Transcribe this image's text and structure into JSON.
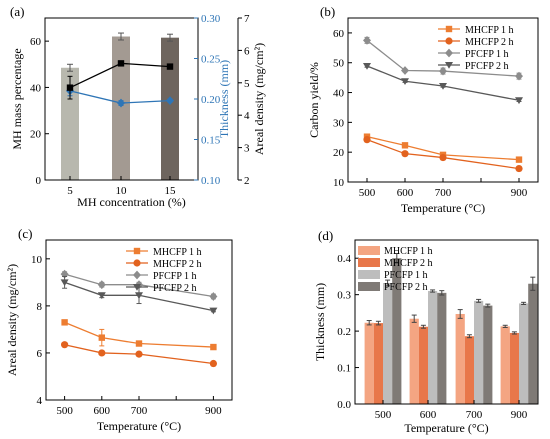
{
  "chart_data": [
    {
      "id": "a",
      "panel_label": "(a)",
      "type": "bar",
      "categories": [
        "5",
        "10",
        "15"
      ],
      "xlabel": "MH concentration (%)",
      "ylabel": "MH mass percentage",
      "ylim": [
        0,
        70
      ],
      "yticks": [
        0,
        20,
        40,
        60
      ],
      "y2label": "Thickness (mm)",
      "y2lim": [
        0.1,
        0.3
      ],
      "y2ticks": [
        "0.10",
        "0.15",
        "0.20",
        "0.25",
        "0.30"
      ],
      "y3label": "Areal density (mg/cm²)",
      "y3lim": [
        2,
        7
      ],
      "y3ticks": [
        2,
        3,
        4,
        5,
        6,
        7
      ],
      "colors": {
        "bars": [
          "#b8b8ae",
          "#a39a92",
          "#6e655e"
        ],
        "thickness": "#2e75b6",
        "areal": "#000000",
        "y2axis": "#2e75b6"
      },
      "series": [
        {
          "kind": "bar",
          "axis": "y",
          "values": [
            48.5,
            62,
            61.5
          ],
          "errors": [
            1.5,
            1.5,
            1.5
          ]
        },
        {
          "kind": "line",
          "axis": "y2",
          "marker": "diamond",
          "values": [
            0.21,
            0.195,
            0.198
          ],
          "errors": [
            0.006,
            0.003,
            0.002
          ]
        },
        {
          "kind": "line",
          "axis": "y3",
          "marker": "square",
          "values": [
            4.85,
            5.6,
            5.5
          ],
          "errors": [
            0.35,
            0.05,
            0.05
          ]
        }
      ]
    },
    {
      "id": "b",
      "panel_label": "(b)",
      "type": "line",
      "x": [
        500,
        600,
        700,
        900
      ],
      "xlim": [
        450,
        950
      ],
      "xticks": [
        500,
        600,
        700,
        800,
        900
      ],
      "xlabel": "Temperature (°C)",
      "ylabel": "Carbon yield/%",
      "ylim": [
        10,
        65
      ],
      "yticks": [
        10,
        20,
        30,
        40,
        50,
        60
      ],
      "legend": "top-right",
      "series": [
        {
          "name": "MHCFP 1 h",
          "color": "#ed7d31",
          "marker": "square",
          "values": [
            25.2,
            22.3,
            19.1,
            17.5
          ],
          "errors": [
            0.8,
            0.5,
            0.5,
            0.5
          ]
        },
        {
          "name": "MHCFP 2 h",
          "color": "#e2621e",
          "marker": "circle",
          "values": [
            24.2,
            19.5,
            18.2,
            14.5
          ],
          "errors": [
            0.6,
            0.5,
            0.6,
            0.5
          ]
        },
        {
          "name": "PFCFP 1 h",
          "color": "#8c8c8c",
          "marker": "diamond",
          "values": [
            57.5,
            47.4,
            47.2,
            45.5
          ],
          "errors": [
            1.0,
            0.5,
            1.0,
            1.0
          ]
        },
        {
          "name": "PFCFP 2 h",
          "color": "#595959",
          "marker": "triangle",
          "values": [
            48.9,
            43.8,
            42.2,
            37.4
          ],
          "errors": [
            0.4,
            0.4,
            0.4,
            0.4
          ]
        }
      ]
    },
    {
      "id": "c",
      "panel_label": "(c)",
      "type": "line",
      "x": [
        500,
        600,
        700,
        900
      ],
      "xlim": [
        450,
        950
      ],
      "xticks": [
        500,
        600,
        700,
        800,
        900
      ],
      "xlabel": "Temperature (°C)",
      "ylabel": "Areal density (mg/cm²)",
      "ylim": [
        4,
        10.8
      ],
      "yticks": [
        4,
        6,
        8,
        10
      ],
      "legend": "top-right",
      "series": [
        {
          "name": "MHCFP 1 h",
          "color": "#ed7d31",
          "marker": "square",
          "values": [
            7.3,
            6.65,
            6.4,
            6.25
          ],
          "errors": [
            0.1,
            0.35,
            0.1,
            0.05
          ]
        },
        {
          "name": "MHCFP 2 h",
          "color": "#e2621e",
          "marker": "circle",
          "values": [
            6.35,
            6.0,
            5.95,
            5.55
          ],
          "errors": [
            0.05,
            0.05,
            0.05,
            0.05
          ]
        },
        {
          "name": "PFCFP 1 h",
          "color": "#8c8c8c",
          "marker": "diamond",
          "values": [
            9.35,
            8.9,
            8.9,
            8.4
          ],
          "errors": [
            0.1,
            0.1,
            0.1,
            0.1
          ]
        },
        {
          "name": "PFCFP 2 h",
          "color": "#595959",
          "marker": "triangle",
          "values": [
            9.0,
            8.45,
            8.45,
            7.8
          ],
          "errors": [
            0.25,
            0.1,
            0.35,
            0.05
          ]
        }
      ]
    },
    {
      "id": "d",
      "panel_label": "(d)",
      "type": "bar",
      "categories": [
        "500",
        "600",
        "700",
        "900"
      ],
      "xlabel": "Temperature (°C)",
      "ylabel": "Thickness (mm)",
      "ylim": [
        0,
        0.45
      ],
      "yticks": [
        "0.0",
        "0.1",
        "0.2",
        "0.3",
        "0.4"
      ],
      "legend": "top-left",
      "series": [
        {
          "name": "MHCFP 1 h",
          "color": "#f4a582",
          "values": [
            0.223,
            0.234,
            0.247,
            0.213
          ],
          "errors": [
            0.006,
            0.01,
            0.012,
            0.003
          ]
        },
        {
          "name": "MHCFP 2 h",
          "color": "#e8774a",
          "values": [
            0.222,
            0.212,
            0.186,
            0.195
          ],
          "errors": [
            0.005,
            0.004,
            0.004,
            0.003
          ]
        },
        {
          "name": "PFCFP 1 h",
          "color": "#bdbdbd",
          "values": [
            0.332,
            0.31,
            0.283,
            0.276
          ],
          "errors": [
            0.008,
            0.003,
            0.004,
            0.003
          ]
        },
        {
          "name": "PFCFP 2 h",
          "color": "#7f7a76",
          "values": [
            0.4,
            0.305,
            0.27,
            0.33
          ],
          "errors": [
            0.013,
            0.006,
            0.004,
            0.018
          ]
        }
      ]
    }
  ]
}
